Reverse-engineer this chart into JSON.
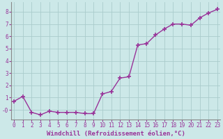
{
  "x": [
    0,
    1,
    2,
    3,
    4,
    5,
    6,
    7,
    8,
    9,
    10,
    11,
    12,
    13,
    14,
    15,
    16,
    17,
    18,
    19,
    20,
    21,
    22,
    23
  ],
  "y": [
    0.7,
    1.1,
    -0.2,
    -0.4,
    -0.1,
    -0.2,
    -0.2,
    -0.2,
    -0.3,
    -0.3,
    1.3,
    1.5,
    2.6,
    2.7,
    5.3,
    5.4,
    6.1,
    6.6,
    7.0,
    7.0,
    6.9,
    7.5,
    7.9,
    8.2
  ],
  "line_color": "#993399",
  "marker": "+",
  "marker_size": 4,
  "marker_linewidth": 1.2,
  "line_width": 1.0,
  "bg_color": "#cce8e8",
  "grid_color": "#aacccc",
  "xlabel": "Windchill (Refroidissement éolien,°C)",
  "xlabel_color": "#993399",
  "xlabel_fontsize": 6.5,
  "tick_color": "#993399",
  "tick_fontsize": 5.5,
  "ylim": [
    -0.8,
    8.8
  ],
  "xlim": [
    -0.3,
    23.3
  ],
  "yticks": [
    0,
    1,
    2,
    3,
    4,
    5,
    6,
    7,
    8
  ],
  "ytick_labels": [
    "-0",
    "1",
    "2",
    "3",
    "4",
    "5",
    "6",
    "7",
    "8"
  ],
  "xticks": [
    0,
    1,
    2,
    3,
    4,
    5,
    6,
    7,
    8,
    9,
    10,
    11,
    12,
    13,
    14,
    15,
    16,
    17,
    18,
    19,
    20,
    21,
    22,
    23
  ]
}
